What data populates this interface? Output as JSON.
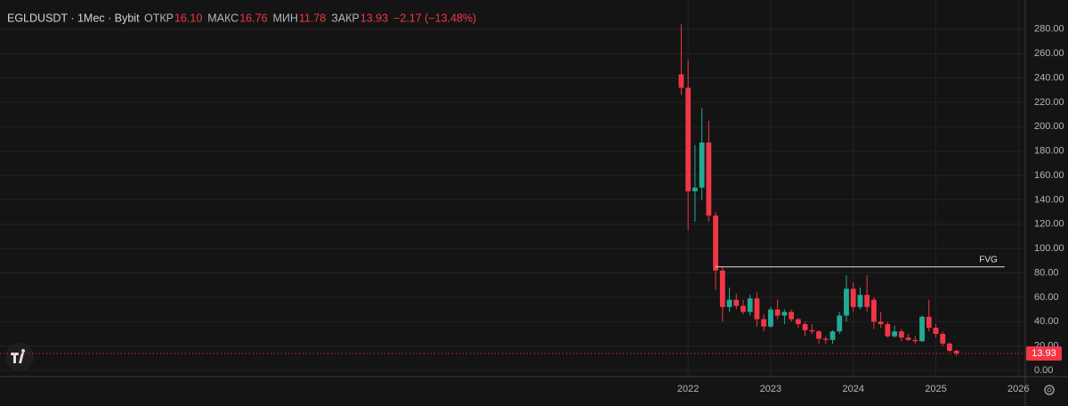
{
  "header": {
    "title": "EGLDUSDT · 1Мес · Bybit",
    "open_label": "ОТКР",
    "open": "16.10",
    "high_label": "МАКС",
    "high": "16.76",
    "low_label": "МИН",
    "low": "11.78",
    "close_label": "ЗАКР",
    "close": "13.93",
    "change": "−2.17 (−13.48%)"
  },
  "chart_data": {
    "type": "candlestick",
    "x": [
      "2021-12",
      "2022-01",
      "2022-02",
      "2022-03",
      "2022-04",
      "2022-05",
      "2022-06",
      "2022-07",
      "2022-08",
      "2022-09",
      "2022-10",
      "2022-11",
      "2022-12",
      "2023-01",
      "2023-02",
      "2023-03",
      "2023-04",
      "2023-05",
      "2023-06",
      "2023-07",
      "2023-08",
      "2023-09",
      "2023-10",
      "2023-11",
      "2023-12",
      "2024-01",
      "2024-02",
      "2024-03",
      "2024-04",
      "2024-05",
      "2024-06",
      "2024-07",
      "2024-08",
      "2024-09",
      "2024-10",
      "2024-11",
      "2024-12",
      "2025-01",
      "2025-02",
      "2025-03",
      "2025-04"
    ],
    "open": [
      243,
      232,
      147,
      150,
      187,
      127,
      82,
      52,
      58,
      53,
      48,
      59,
      42,
      36,
      50,
      45,
      48,
      42,
      38,
      33,
      32,
      26,
      25,
      32,
      45,
      67,
      52,
      62,
      58,
      40,
      38,
      28,
      32,
      27,
      25,
      24,
      44,
      35,
      30,
      22,
      16.1
    ],
    "high": [
      284,
      255,
      185,
      215,
      205,
      130,
      85,
      68,
      63,
      58,
      62,
      64,
      46,
      52,
      58,
      50,
      50,
      43,
      40,
      38,
      33,
      28,
      33,
      48,
      78,
      72,
      68,
      78,
      60,
      48,
      40,
      37,
      34,
      30,
      28,
      45,
      58,
      38,
      32,
      23,
      16.76
    ],
    "low": [
      226,
      115,
      122,
      140,
      122,
      66,
      40,
      48,
      50,
      46,
      45,
      36,
      32,
      35,
      42,
      38,
      40,
      35,
      28,
      30,
      22,
      22,
      22,
      30,
      40,
      48,
      50,
      48,
      34,
      35,
      27,
      27,
      24,
      24,
      22,
      23,
      32,
      27,
      20,
      15,
      11.78
    ],
    "close": [
      232,
      147,
      150,
      187,
      127,
      82,
      52,
      58,
      53,
      48,
      59,
      42,
      36,
      50,
      45,
      48,
      42,
      38,
      33,
      32,
      26,
      25,
      32,
      45,
      67,
      52,
      62,
      52,
      40,
      38,
      28,
      32,
      27,
      25,
      24,
      44,
      35,
      30,
      22,
      16.1,
      13.93
    ],
    "up_color": "#22ab94",
    "down_color": "#f23645",
    "ylim": [
      -5.1,
      304
    ],
    "yticks": [
      {
        "value": 0,
        "label": "0.00"
      },
      {
        "value": 20,
        "label": "20.00"
      },
      {
        "value": 40,
        "label": "40.00"
      },
      {
        "value": 60,
        "label": "60.00"
      },
      {
        "value": 80,
        "label": "80.00"
      },
      {
        "value": 100,
        "label": "100.00"
      },
      {
        "value": 120,
        "label": "120.00"
      },
      {
        "value": 140,
        "label": "140.00"
      },
      {
        "value": 160,
        "label": "160.00"
      },
      {
        "value": 180,
        "label": "180.00"
      },
      {
        "value": 200,
        "label": "200.00"
      },
      {
        "value": 220,
        "label": "220.00"
      },
      {
        "value": 240,
        "label": "240.00"
      },
      {
        "value": 260,
        "label": "260.00"
      },
      {
        "value": 280,
        "label": "280.00"
      }
    ],
    "xlim": [
      "2013-09",
      "2026-02"
    ],
    "xticks": [
      {
        "value": "2022-01",
        "label": "2022"
      },
      {
        "value": "2023-01",
        "label": "2023"
      },
      {
        "value": "2024-01",
        "label": "2024"
      },
      {
        "value": "2025-01",
        "label": "2025"
      },
      {
        "value": "2026-01",
        "label": "2026"
      }
    ],
    "grid": true,
    "last_price": {
      "value": 13.93,
      "label": "13.93"
    },
    "annotations": [
      {
        "text": "FVG",
        "value": 85,
        "start": "2022-05",
        "end": "2025-11"
      }
    ]
  }
}
